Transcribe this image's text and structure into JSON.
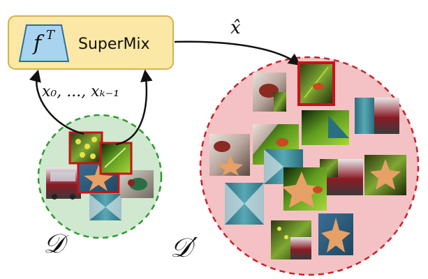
{
  "teacher_box": {
    "model_label": "f",
    "model_superscript": "T",
    "method_label": "SuperMix",
    "fill": "#fbe8a6",
    "stroke": "#d8b14a",
    "trap_fill": "#a9d4ef",
    "trap_stroke": "#2f6e9c"
  },
  "labels": {
    "inputs": "x₀, ..., xₖ₋₁",
    "output": "x̂",
    "source_set": "𝒟",
    "target_set": "𝒟′"
  },
  "colors": {
    "source_circle_fill": "#cfe8cf",
    "source_circle_stroke": "#2e9a2e",
    "target_circle_fill": "#f4c2c4",
    "target_circle_stroke": "#c8222a",
    "highlight_stroke": "#c8121a"
  },
  "thumbnails": {
    "source": [
      "flowers",
      "starfish",
      "bus",
      "leaf",
      "fly",
      "fabric"
    ],
    "target": [
      "mix",
      "bird",
      "flowers",
      "fabric",
      "bird-mix",
      "fabric-mix",
      "bus",
      "starfish",
      "starfish-bus",
      "fly-mix",
      "flowers-bus",
      "starfish-2"
    ]
  }
}
